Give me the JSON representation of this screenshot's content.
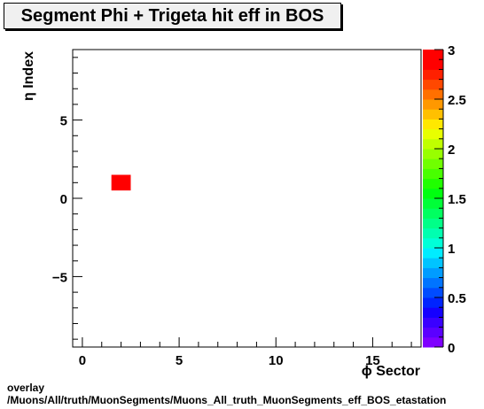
{
  "chart_data": {
    "type": "heatmap",
    "title": "Segment Phi + Trigeta hit eff in BOS",
    "xlabel": "ϕ Sector",
    "ylabel": "η Index",
    "xlim": [
      -0.5,
      17.5
    ],
    "ylim": [
      -9.5,
      9.5
    ],
    "x_ticks": [
      0,
      5,
      10,
      15
    ],
    "x_tick_labels": [
      "0",
      "5",
      "10",
      "15"
    ],
    "y_ticks": [
      -5,
      0,
      5
    ],
    "y_tick_labels": [
      "−5",
      "0",
      "5"
    ],
    "z_range": [
      0,
      3
    ],
    "z_ticks": [
      0,
      0.5,
      1,
      1.5,
      2,
      2.5,
      3
    ],
    "z_tick_labels": [
      "0",
      "0.5",
      "1",
      "1.5",
      "2",
      "2.5",
      "3"
    ],
    "palette": [
      "#7f00ff",
      "#5b00ff",
      "#3a00ff",
      "#1500ff",
      "#0024ff",
      "#004cff",
      "#0074ff",
      "#009cff",
      "#00c4ff",
      "#00ecff",
      "#00ffd8",
      "#00ffb0",
      "#00ff88",
      "#00ff60",
      "#00ff38",
      "#00ff10",
      "#20ff00",
      "#48ff00",
      "#70ff00",
      "#98ff00",
      "#c0ff00",
      "#e8ff00",
      "#ffe800",
      "#ffc000",
      "#ff9800",
      "#ff7000",
      "#ff4800",
      "#ff2000",
      "#ff0000",
      "#ff0000"
    ],
    "cells": [
      {
        "x": 2,
        "y": 1,
        "value": 3
      }
    ]
  },
  "footer": {
    "line1": "overlay",
    "line2": "/Muons/All/truth/MuonSegments/Muons_All_truth_MuonSegments_eff_BOS_etastation"
  }
}
